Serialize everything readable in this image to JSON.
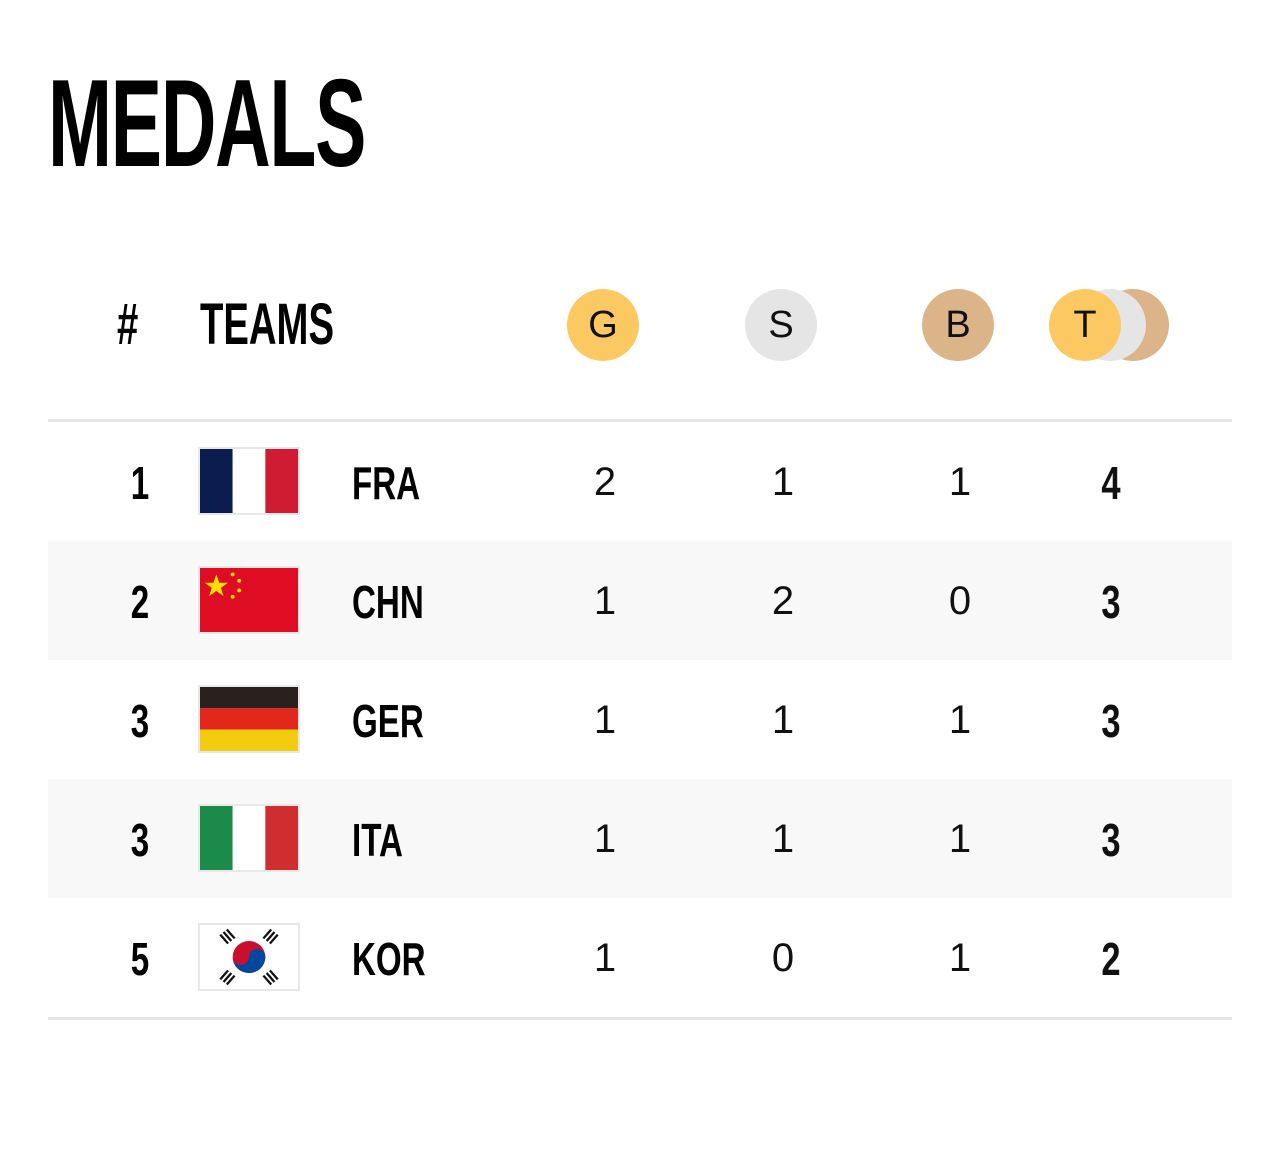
{
  "title": "MEDALS",
  "header": {
    "rank": "#",
    "teams": "TEAMS",
    "gold": "G",
    "silver": "S",
    "bronze": "B",
    "total": "T"
  },
  "colors": {
    "gold": "#fcc861",
    "silver": "#e5e5e5",
    "bronze": "#dcb48a",
    "row_shade": "#f8f8f8"
  },
  "rows": [
    {
      "rank": "1",
      "code": "FRA",
      "flag": "france-flag-icon",
      "gold": "2",
      "silver": "1",
      "bronze": "1",
      "total": "4"
    },
    {
      "rank": "2",
      "code": "CHN",
      "flag": "china-flag-icon",
      "gold": "1",
      "silver": "2",
      "bronze": "0",
      "total": "3"
    },
    {
      "rank": "3",
      "code": "GER",
      "flag": "germany-flag-icon",
      "gold": "1",
      "silver": "1",
      "bronze": "1",
      "total": "3"
    },
    {
      "rank": "3",
      "code": "ITA",
      "flag": "italy-flag-icon",
      "gold": "1",
      "silver": "1",
      "bronze": "1",
      "total": "3"
    },
    {
      "rank": "5",
      "code": "KOR",
      "flag": "korea-flag-icon",
      "gold": "1",
      "silver": "0",
      "bronze": "1",
      "total": "2"
    }
  ]
}
